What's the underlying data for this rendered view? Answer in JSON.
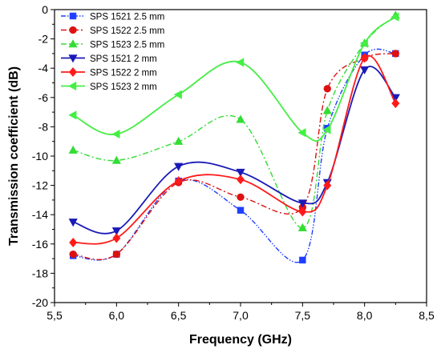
{
  "chart_data": {
    "type": "line",
    "xlabel": "Frequency (GHz)",
    "ylabel": "Transmission coefficient (dB)",
    "xlim": [
      5.5,
      8.5
    ],
    "ylim": [
      -20,
      0
    ],
    "x_ticks": [
      5.5,
      6.0,
      6.5,
      7.0,
      7.5,
      8.0,
      8.5
    ],
    "x_tick_labels": [
      "5,5",
      "6,0",
      "6,5",
      "7,0",
      "7,5",
      "8,0",
      "8,5"
    ],
    "y_ticks": [
      -20,
      -18,
      -16,
      -14,
      -12,
      -10,
      -8,
      -6,
      -4,
      -2,
      0
    ],
    "y_tick_labels": [
      "-20",
      "-18",
      "-16",
      "-14",
      "-12",
      "-10",
      "-8",
      "-6",
      "-4",
      "-2",
      "0"
    ],
    "grid": false,
    "legend_position": "top-left",
    "x": [
      5.65,
      6.0,
      6.5,
      7.0,
      7.5,
      7.7,
      8.0,
      8.25
    ],
    "series": [
      {
        "name": "SPS 1521 2.5 mm",
        "color": "#1f3fff",
        "marker": "square",
        "line_style": "dash-dot-dot",
        "values": [
          -16.8,
          -16.7,
          -11.7,
          -13.7,
          -17.1,
          -8.1,
          -3.1,
          -3.0
        ]
      },
      {
        "name": "SPS 1522 2.5 mm",
        "color": "#dd1111",
        "marker": "circle",
        "line_style": "dash-dot",
        "values": [
          -16.7,
          -16.7,
          -11.8,
          -12.8,
          -13.5,
          -5.4,
          -3.3,
          -3.0
        ]
      },
      {
        "name": "SPS 1523 2.5 mm",
        "color": "#33dd33",
        "marker": "triangle-up",
        "line_style": "dash-dot",
        "values": [
          -9.6,
          -10.3,
          -9.0,
          -7.5,
          -14.9,
          -6.9,
          -2.3,
          -0.4
        ]
      },
      {
        "name": "SPS 1521 2 mm",
        "color": "#1a1ab8",
        "marker": "triangle-down",
        "line_style": "solid",
        "values": [
          -14.5,
          -15.1,
          -10.7,
          -11.1,
          -13.2,
          -11.8,
          -4.1,
          -6.0
        ]
      },
      {
        "name": "SPS 1522 2 mm",
        "color": "#ff1a1a",
        "marker": "diamond",
        "line_style": "solid",
        "values": [
          -15.9,
          -15.6,
          -11.7,
          -11.6,
          -13.8,
          -12.0,
          -3.3,
          -6.4
        ]
      },
      {
        "name": "SPS 1523 2 mm",
        "color": "#44ee44",
        "marker": "triangle-left",
        "line_style": "solid",
        "values": [
          -7.2,
          -8.5,
          -5.8,
          -3.6,
          -8.4,
          -8.2,
          -2.3,
          -0.5
        ]
      }
    ]
  }
}
